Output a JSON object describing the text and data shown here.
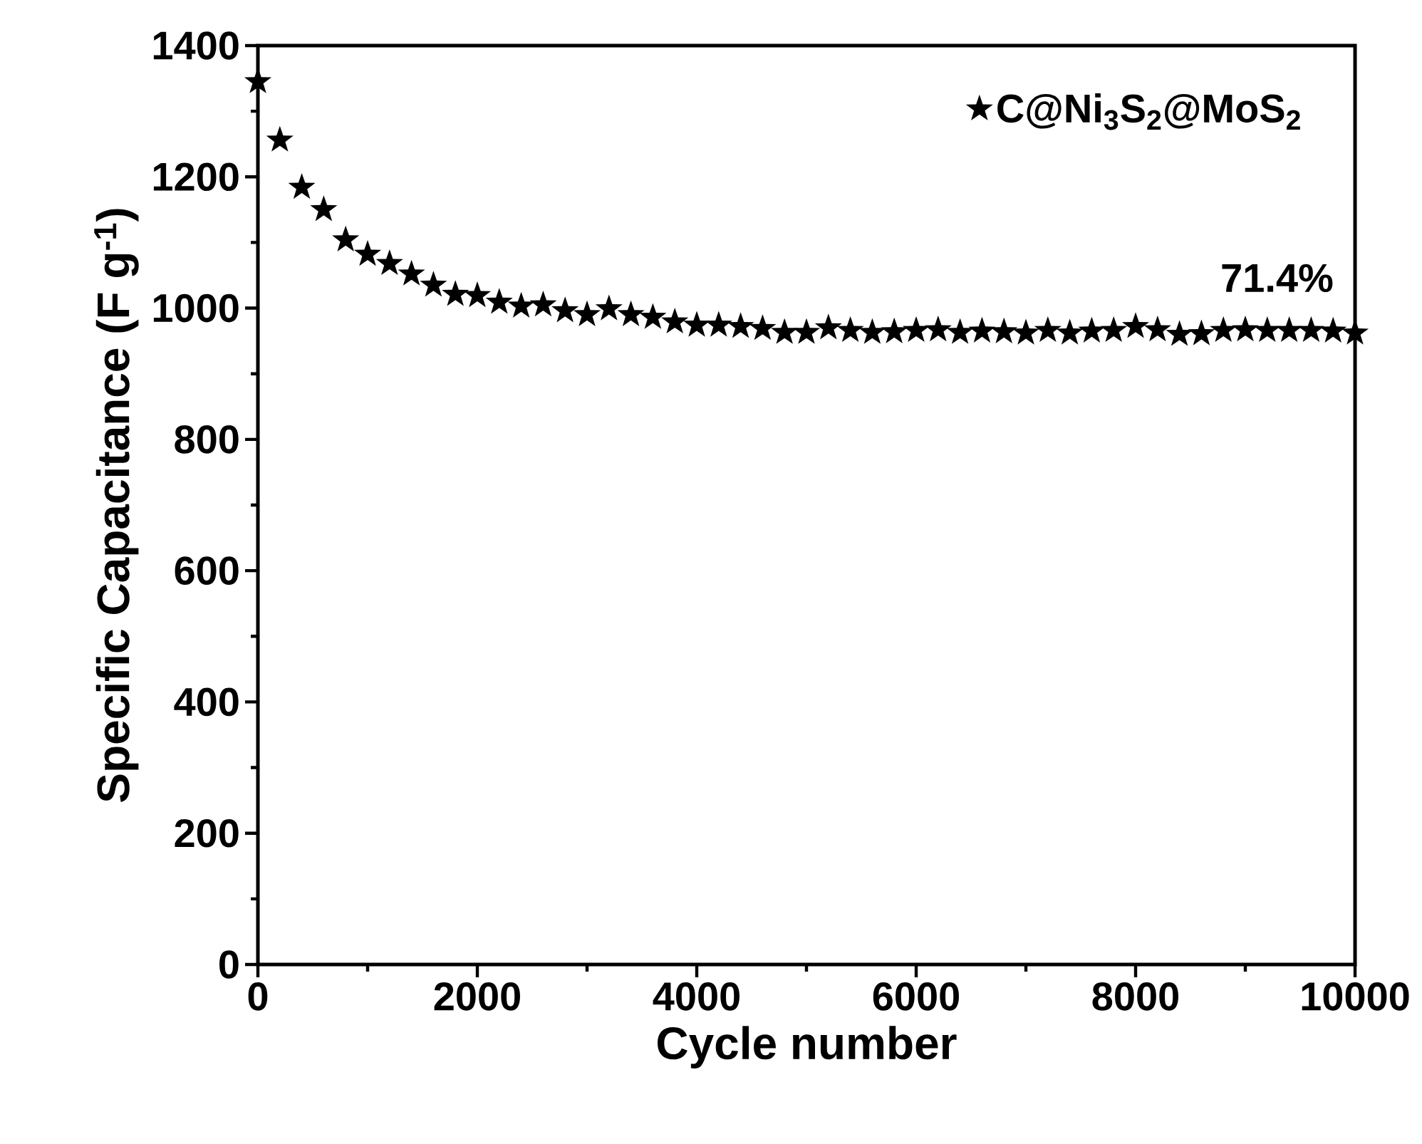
{
  "chart_data": {
    "type": "scatter",
    "xlabel": "Cycle number",
    "ylabel": "Specific Capacitance (F g$^{-1}$)",
    "x": [
      0,
      200,
      400,
      600,
      800,
      1000,
      1200,
      1400,
      1600,
      1800,
      2000,
      2200,
      2400,
      2600,
      2800,
      3000,
      3200,
      3400,
      3600,
      3800,
      4000,
      4200,
      4400,
      4600,
      4800,
      5000,
      5200,
      5400,
      5600,
      5800,
      6000,
      6200,
      6400,
      6600,
      6800,
      7000,
      7200,
      7400,
      7600,
      7800,
      8000,
      8200,
      8400,
      8600,
      8800,
      9000,
      9200,
      9400,
      9600,
      9800,
      10000
    ],
    "series": [
      {
        "name": "C@Ni$_{3}$S$_{2}$@MoS$_{2}$",
        "color": "#000000",
        "values": [
          1345,
          1256,
          1184,
          1150,
          1104,
          1082,
          1068,
          1052,
          1035,
          1021,
          1019,
          1009,
          1003,
          1005,
          996,
          990,
          999,
          990,
          986,
          979,
          974,
          974,
          972,
          969,
          963,
          963,
          970,
          966,
          963,
          964,
          966,
          967,
          963,
          965,
          964,
          962,
          966,
          962,
          965,
          966,
          972,
          967,
          960,
          961,
          966,
          967,
          966,
          966,
          966,
          965,
          962
        ]
      }
    ],
    "xlim": [
      0,
      10000
    ],
    "xticks": [
      0,
      2000,
      4000,
      6000,
      8000,
      10000
    ],
    "ylim": [
      0,
      1400
    ],
    "yticks": [
      0,
      200,
      400,
      600,
      800,
      1000,
      1200,
      1400
    ],
    "annotations": [
      "71.4%"
    ],
    "legend": "top right",
    "marker": "star"
  }
}
